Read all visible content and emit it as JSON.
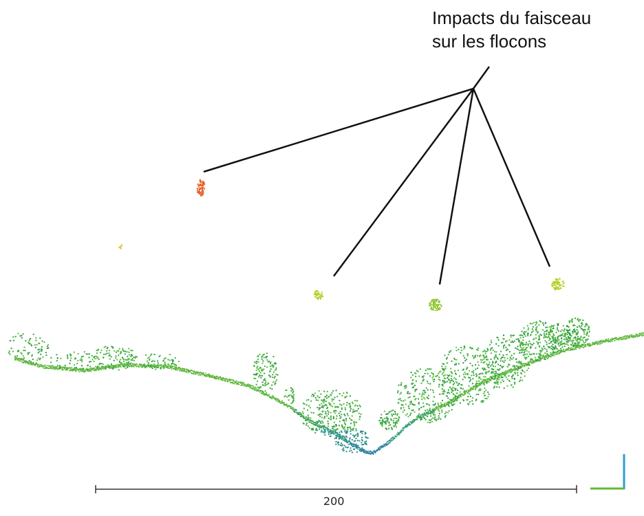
{
  "annotation": {
    "line1": "Impacts du faisceau",
    "line2": "sur les flocons"
  },
  "scale": {
    "label": "200"
  },
  "colors": {
    "background": "#ffffff",
    "leader_lines": "#111111",
    "terrain_green": "#5cb53a",
    "vegetation_green": "#3fae3c",
    "valley_blue": "#2a7fa0",
    "snowflake_orange": "#e4602a",
    "snowflake_yellow_green": "#b6cf2a",
    "axis_blue": "#2e9bd6",
    "axis_green": "#62b82f"
  }
}
